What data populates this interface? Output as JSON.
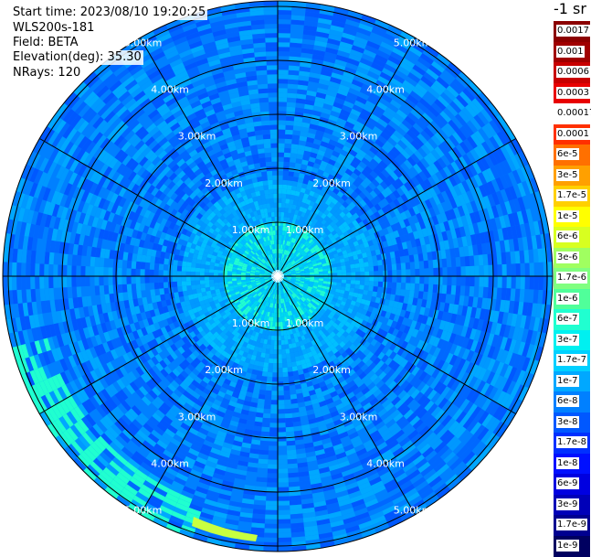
{
  "header": {
    "start_time": "Start time: 2023/08/10 19:20:25",
    "instrument": "WLS200s-181",
    "field": "Field: BETA",
    "elevation": "Elevation(deg): 35.30",
    "nrays": "NRays: 120"
  },
  "rings": [
    "1.00km",
    "2.00km",
    "3.00km",
    "4.00km",
    "5.00km"
  ],
  "colorbar": {
    "unit": "-1 sr",
    "labels": [
      "0.0017",
      "0.001",
      "0.0006",
      "0.0003",
      "0.00017",
      "0.0001",
      "6e-5",
      "3e-5",
      "1.7e-5",
      "1e-5",
      "6e-6",
      "3e-6",
      "1.7e-6",
      "1e-6",
      "6e-7",
      "3e-7",
      "1.7e-7",
      "1e-7",
      "6e-8",
      "3e-8",
      "1.7e-8",
      "1e-8",
      "6e-9",
      "3e-9",
      "1.7e-9",
      "1e-9"
    ],
    "colors": [
      "#8b0000",
      "#a00000",
      "#c80000",
      "#e80000",
      "#ffffff",
      "#ff3000",
      "#ff7000",
      "#ffa000",
      "#ffd000",
      "#ffff00",
      "#d8ff20",
      "#a0ff60",
      "#80ff80",
      "#50ff9a",
      "#20ffd0",
      "#00f0f0",
      "#00d0ff",
      "#00a8ff",
      "#0080ff",
      "#0058ff",
      "#0030ff",
      "#0010ff",
      "#0000e0",
      "#0000b8",
      "#000090",
      "#000060"
    ]
  }
}
